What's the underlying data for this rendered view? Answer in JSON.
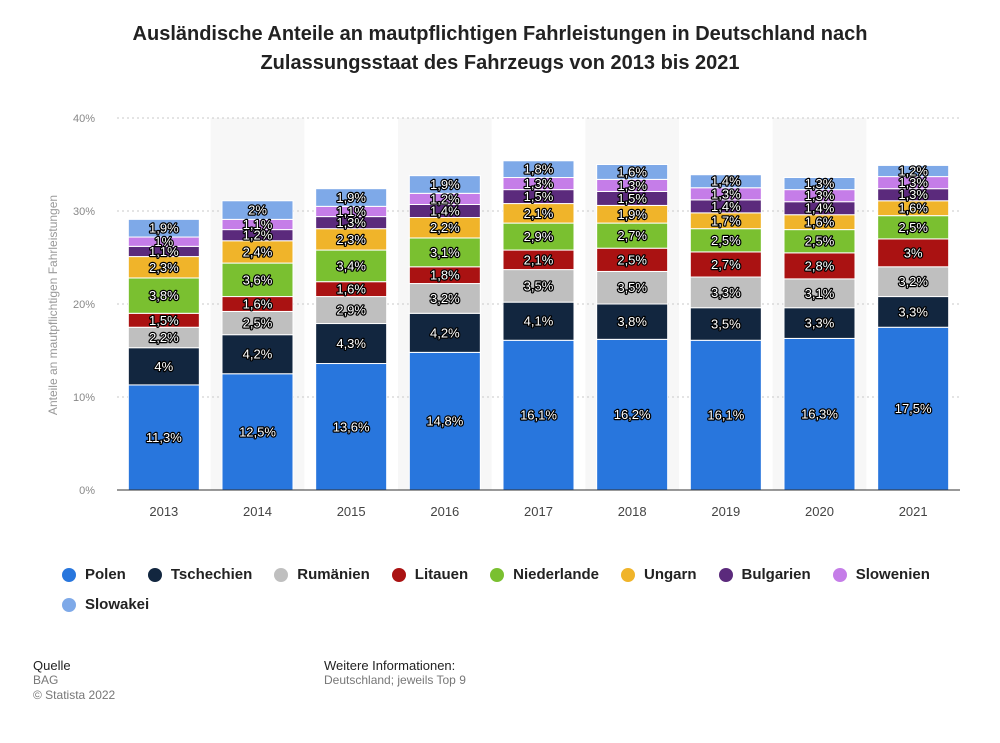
{
  "header": {
    "title_line1": "Ausländische Anteile an mautpflichtigen Fahrleistungen in Deutschland nach",
    "title_line2": "Zulassungsstaat des Fahrzeugs von 2013 bis 2021"
  },
  "chart_data": {
    "type": "bar",
    "stacked": true,
    "ylabel": "Anteile an mautpflichtigen Fahrleistungen",
    "ylim": [
      0,
      40
    ],
    "yticks": [
      "0%",
      "10%",
      "20%",
      "30%",
      "40%"
    ],
    "categories": [
      "2013",
      "2014",
      "2015",
      "2016",
      "2017",
      "2018",
      "2019",
      "2020",
      "2021"
    ],
    "legend_position": "bottom",
    "series": [
      {
        "name": "Polen",
        "color": "#2876dd",
        "values": [
          11.3,
          12.5,
          13.6,
          14.8,
          16.1,
          16.2,
          16.1,
          16.3,
          17.5
        ],
        "labels": [
          "11,3%",
          "12,5%",
          "13,6%",
          "14,8%",
          "16,1%",
          "16,2%",
          "16,1%",
          "16,3%",
          "17,5%"
        ]
      },
      {
        "name": "Tschechien",
        "color": "#12263f",
        "values": [
          4,
          4.2,
          4.3,
          4.2,
          4.1,
          3.8,
          3.5,
          3.3,
          3.3
        ],
        "labels": [
          "4%",
          "4,2%",
          "4,3%",
          "4,2%",
          "4,1%",
          "3,8%",
          "3,5%",
          "3,3%",
          "3,3%"
        ]
      },
      {
        "name": "Rumänien",
        "color": "#bfbfbf",
        "values": [
          2.2,
          2.5,
          2.9,
          3.2,
          3.5,
          3.5,
          3.3,
          3.1,
          3.2
        ],
        "labels": [
          "2,2%",
          "2,5%",
          "2,9%",
          "3,2%",
          "3,5%",
          "3,5%",
          "3,3%",
          "3,1%",
          "3,2%"
        ]
      },
      {
        "name": "Litauen",
        "color": "#aa1212",
        "values": [
          1.5,
          1.6,
          1.6,
          1.8,
          2.1,
          2.5,
          2.7,
          2.8,
          3
        ],
        "labels": [
          "1,5%",
          "1,6%",
          "1,6%",
          "1,8%",
          "2,1%",
          "2,5%",
          "2,7%",
          "2,8%",
          "3%"
        ]
      },
      {
        "name": "Niederlande",
        "color": "#7ac030",
        "values": [
          3.8,
          3.6,
          3.4,
          3.1,
          2.9,
          2.7,
          2.5,
          2.5,
          2.5
        ],
        "labels": [
          "3,8%",
          "3,6%",
          "3,4%",
          "3,1%",
          "2,9%",
          "2,7%",
          "2,5%",
          "2,5%",
          "2,5%"
        ]
      },
      {
        "name": "Ungarn",
        "color": "#f0b42a",
        "values": [
          2.3,
          2.4,
          2.3,
          2.2,
          2.1,
          1.9,
          1.7,
          1.6,
          1.6
        ],
        "labels": [
          "2,3%",
          "2,4%",
          "2,3%",
          "2,2%",
          "2,1%",
          "1,9%",
          "1,7%",
          "1,6%",
          "1,6%"
        ]
      },
      {
        "name": "Bulgarien",
        "color": "#5b2a7c",
        "values": [
          1.1,
          1.2,
          1.3,
          1.4,
          1.5,
          1.5,
          1.4,
          1.4,
          1.3
        ],
        "labels": [
          "1,1%",
          "1,2%",
          "1,3%",
          "1,4%",
          "1,5%",
          "1,5%",
          "1,4%",
          "1,4%",
          "1,3%"
        ]
      },
      {
        "name": "Slowenien",
        "color": "#c57de8",
        "values": [
          1,
          1.1,
          1.1,
          1.2,
          1.3,
          1.3,
          1.3,
          1.3,
          1.3
        ],
        "labels": [
          "1%",
          "1,1%",
          "1,1%",
          "1,2%",
          "1,3%",
          "1,3%",
          "1,3%",
          "1,3%",
          "1,3%"
        ]
      },
      {
        "name": "Slowakei",
        "color": "#7ea9e8",
        "values": [
          1.9,
          2,
          1.9,
          1.9,
          1.8,
          1.6,
          1.4,
          1.3,
          1.2
        ],
        "labels": [
          "1,9%",
          "2%",
          "1,9%",
          "1,9%",
          "1,8%",
          "1,6%",
          "1,4%",
          "1,3%",
          "1,2%"
        ]
      }
    ]
  },
  "footer": {
    "source_heading": "Quelle",
    "source_name": "BAG",
    "copyright": "© Statista 2022",
    "info_heading": "Weitere Informationen:",
    "info_text": "Deutschland; jeweils Top 9"
  }
}
